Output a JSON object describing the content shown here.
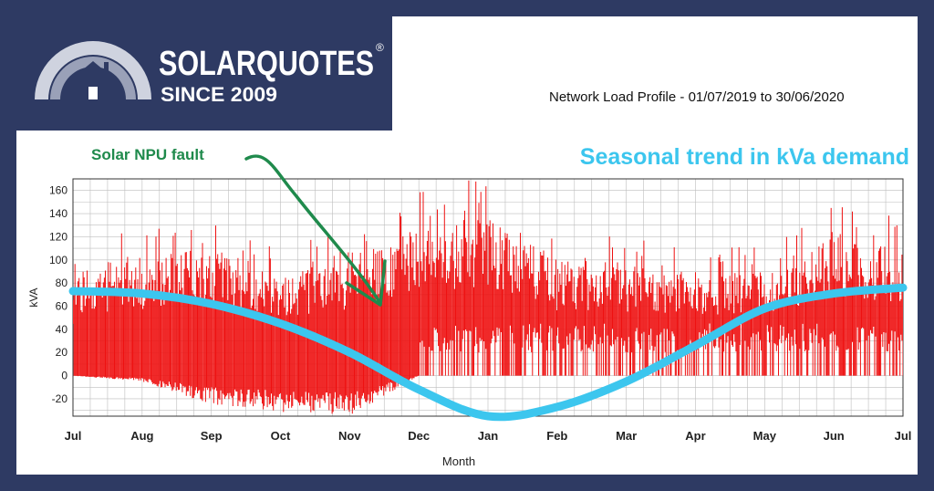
{
  "brand": {
    "name": "SOLARQUOTES",
    "mark": "®",
    "tagline": "SINCE 2009",
    "colors": {
      "navy": "#2e3a63",
      "arc_light": "#cfd3df",
      "arc_mid": "#9aa1b8"
    }
  },
  "chart_data": {
    "type": "line",
    "title": "Network Load Profile - 01/07/2019 to 30/06/2020",
    "xlabel": "Month",
    "ylabel": "kVA",
    "x_tick_labels": [
      "Jul",
      "Aug",
      "Sep",
      "Oct",
      "Nov",
      "Dec",
      "Jan",
      "Feb",
      "Mar",
      "Apr",
      "May",
      "Jun",
      "Jul"
    ],
    "y_ticks": [
      -20,
      0,
      20,
      40,
      60,
      80,
      100,
      120,
      140,
      160
    ],
    "ylim": [
      -35,
      170
    ],
    "grid": true,
    "series": [
      {
        "color": "#ee1111",
        "description_points_monthly_max": [
          118,
          128,
          138,
          112,
          128,
          160,
          172,
          125,
          122,
          110,
          112,
          155,
          135
        ],
        "description_points_monthly_min": [
          0,
          -5,
          -25,
          -32,
          -35,
          0,
          0,
          0,
          0,
          0,
          0,
          0,
          0
        ]
      },
      {
        "name": "Seasonal trend in kVa demand",
        "color": "#3cc6ee",
        "x": [
          "Jul",
          "Aug",
          "Sep",
          "Oct",
          "Nov",
          "Dec",
          "Jan",
          "Feb",
          "Mar",
          "Apr",
          "May",
          "Jun",
          "Jul"
        ],
        "values": [
          73,
          71,
          62,
          45,
          20,
          -12,
          -35,
          -27,
          -5,
          26,
          58,
          71,
          76
        ]
      }
    ],
    "annotations": [
      {
        "text": "Solar NPU fault",
        "color": "#1f8a4c",
        "points_to": "Nov"
      },
      {
        "text": "Seasonal trend in kVa demand",
        "color": "#3cc6ee"
      }
    ]
  }
}
